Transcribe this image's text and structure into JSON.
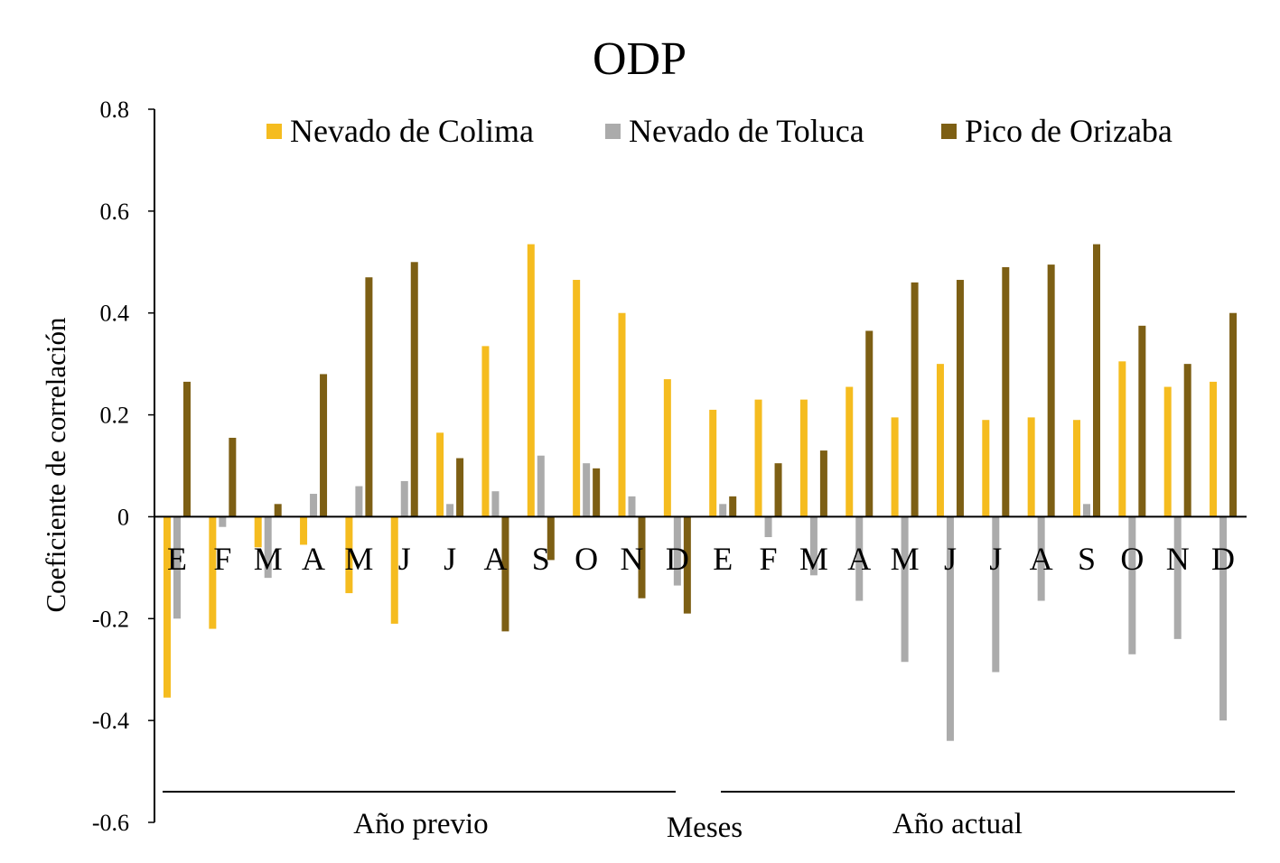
{
  "chart_data": {
    "type": "bar",
    "title": "ODP",
    "ylabel": "Coeficiente  de correlación",
    "xlabel": "Meses",
    "ylim": [
      -0.6,
      0.8
    ],
    "yticks": [
      0.8,
      0.6,
      0.4,
      0.2,
      0,
      -0.2,
      -0.4,
      -0.6
    ],
    "ytick_labels": [
      "0.8",
      "0.6",
      "0.4",
      "0.2",
      "0",
      "-0.2",
      "-0.4",
      "-0.6"
    ],
    "legend_position": "top-right",
    "categories": [
      "E",
      "F",
      "M",
      "A",
      "M",
      "J",
      "J",
      "A",
      "S",
      "O",
      "N",
      "D",
      "E",
      "F",
      "M",
      "A",
      "M",
      "J",
      "J",
      "A",
      "S",
      "O",
      "N",
      "D"
    ],
    "groups": [
      {
        "label": "Año previo",
        "start": 0,
        "end": 11
      },
      {
        "label": "Año actual",
        "start": 12,
        "end": 23
      }
    ],
    "series": [
      {
        "name": "Nevado de Colima",
        "color": "#F5BC1F",
        "values": [
          -0.355,
          -0.22,
          -0.06,
          -0.055,
          -0.15,
          -0.21,
          0.165,
          0.335,
          0.535,
          0.465,
          0.4,
          0.27,
          0.21,
          0.23,
          0.23,
          0.255,
          0.195,
          0.3,
          0.19,
          0.195,
          0.19,
          0.305,
          0.255,
          0.265
        ]
      },
      {
        "name": "Nevado de Toluca",
        "color": "#ABABAB",
        "values": [
          -0.2,
          -0.02,
          -0.12,
          0.045,
          0.06,
          0.07,
          0.025,
          0.05,
          0.12,
          0.105,
          0.04,
          -0.135,
          0.025,
          -0.04,
          -0.115,
          -0.165,
          -0.285,
          -0.44,
          -0.305,
          -0.165,
          0.025,
          -0.27,
          -0.24,
          -0.4
        ]
      },
      {
        "name": "Pico de Orizaba",
        "color": "#7D5F14",
        "values": [
          0.265,
          0.155,
          0.025,
          0.28,
          0.47,
          0.5,
          0.115,
          -0.225,
          -0.085,
          0.095,
          -0.16,
          -0.19,
          0.04,
          0.105,
          0.13,
          0.365,
          0.46,
          0.465,
          0.49,
          0.495,
          0.535,
          0.375,
          0.3,
          0.4
        ]
      }
    ]
  }
}
